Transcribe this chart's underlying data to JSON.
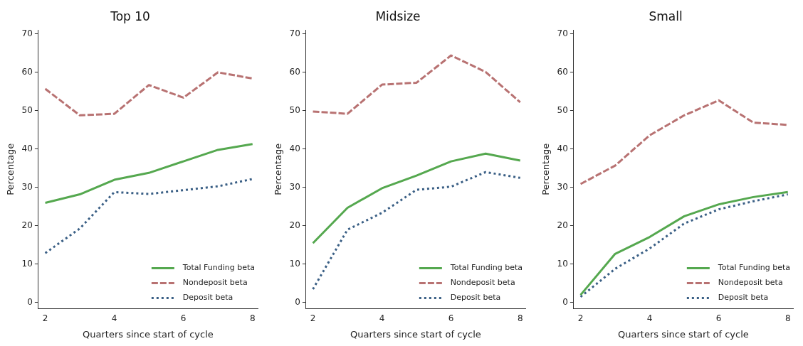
{
  "chart_data": [
    {
      "type": "line",
      "title": "Top 10",
      "xlabel": "Quarters since start of cycle",
      "ylabel": "Percentage",
      "x": [
        2,
        3,
        4,
        5,
        6,
        7,
        8
      ],
      "xlim": [
        1.8,
        8.15
      ],
      "xticks": [
        2,
        4,
        6,
        8
      ],
      "ylim": [
        -1.5,
        71
      ],
      "yticks": [
        0,
        10,
        20,
        30,
        40,
        50,
        60,
        70
      ],
      "grid": false,
      "legend": "bottom right",
      "marker": "none",
      "series": [
        {
          "name": "Total Funding beta",
          "color": "#55a84f",
          "line_style": "solid",
          "values": [
            26,
            28.2,
            32,
            33.8,
            36.8,
            39.8,
            41.3
          ]
        },
        {
          "name": "Nondeposit beta",
          "color": "#b87272",
          "line_style": "dashed",
          "values": [
            55.7,
            48.8,
            49.2,
            56.7,
            53.4,
            60,
            58.4
          ]
        },
        {
          "name": "Deposit beta",
          "color": "#3a5f85",
          "line_style": "dotted",
          "values": [
            12.9,
            19.3,
            28.8,
            28.3,
            29.3,
            30.3,
            32.2
          ]
        }
      ]
    },
    {
      "type": "line",
      "title": "Midsize",
      "xlabel": "Quarters since start of cycle",
      "ylabel": "Percentage",
      "x": [
        2,
        3,
        4,
        5,
        6,
        7,
        8
      ],
      "xlim": [
        1.8,
        8.15
      ],
      "xticks": [
        2,
        4,
        6,
        8
      ],
      "ylim": [
        -1.5,
        71
      ],
      "yticks": [
        0,
        10,
        20,
        30,
        40,
        50,
        60,
        70
      ],
      "grid": false,
      "legend": "bottom right",
      "marker": "none",
      "series": [
        {
          "name": "Total Funding beta",
          "color": "#55a84f",
          "line_style": "solid",
          "values": [
            15.5,
            24.7,
            29.8,
            33.1,
            36.8,
            38.8,
            37
          ]
        },
        {
          "name": "Nondeposit beta",
          "color": "#b87272",
          "line_style": "dashed",
          "values": [
            49.8,
            49.2,
            56.8,
            57.3,
            64.4,
            60.1,
            52.2
          ]
        },
        {
          "name": "Deposit beta",
          "color": "#3a5f85",
          "line_style": "dotted",
          "values": [
            3.5,
            19,
            23.4,
            29.4,
            30.2,
            34,
            32.5
          ]
        }
      ]
    },
    {
      "type": "line",
      "title": "Small",
      "xlabel": "Quarters since start of cycle",
      "ylabel": "Percentage",
      "x": [
        2,
        3,
        4,
        5,
        6,
        7,
        8
      ],
      "xlim": [
        1.8,
        8.15
      ],
      "xticks": [
        2,
        4,
        6,
        8
      ],
      "ylim": [
        -1.5,
        71
      ],
      "yticks": [
        0,
        10,
        20,
        30,
        40,
        50,
        60,
        70
      ],
      "grid": false,
      "legend": "bottom right",
      "marker": "none",
      "series": [
        {
          "name": "Total Funding beta",
          "color": "#55a84f",
          "line_style": "solid",
          "values": [
            2,
            12.7,
            17.1,
            22.5,
            25.6,
            27.5,
            28.8
          ]
        },
        {
          "name": "Nondeposit beta",
          "color": "#b87272",
          "line_style": "dashed",
          "values": [
            30.9,
            35.7,
            43.6,
            48.8,
            52.7,
            46.9,
            46.3
          ]
        },
        {
          "name": "Deposit beta",
          "color": "#3a5f85",
          "line_style": "dotted",
          "values": [
            1.5,
            8.8,
            14.1,
            20.6,
            24.3,
            26.4,
            28.2
          ]
        }
      ]
    }
  ]
}
